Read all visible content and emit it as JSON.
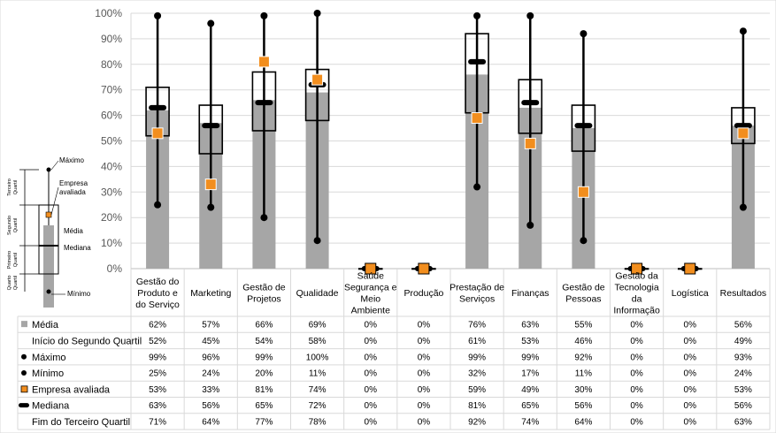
{
  "chart_data": {
    "type": "boxplot",
    "categories": [
      [
        "Gestão do",
        "Produto e",
        "do Serviço"
      ],
      [
        "Marketing"
      ],
      [
        "Gestão de",
        "Projetos"
      ],
      [
        "Qualidade"
      ],
      [
        "Saúde",
        "Segurança e",
        "Meio",
        "Ambiente"
      ],
      [
        "Produção"
      ],
      [
        "Prestação de",
        "Serviços"
      ],
      [
        "Finanças"
      ],
      [
        "Gestão de",
        "Pessoas"
      ],
      [
        "Gestão da",
        "Tecnologia",
        "da",
        "Informação"
      ],
      [
        "Logística"
      ],
      [
        "Resultados"
      ]
    ],
    "y_ticks": [
      "0%",
      "10%",
      "20%",
      "30%",
      "40%",
      "50%",
      "60%",
      "70%",
      "80%",
      "90%",
      "100%"
    ],
    "ylim": [
      0,
      100
    ],
    "series": [
      {
        "key": "media",
        "name": "Média",
        "values": [
          62,
          57,
          66,
          69,
          0,
          0,
          76,
          63,
          55,
          0,
          0,
          56
        ]
      },
      {
        "key": "q1",
        "name": "Início do Segundo Quartil",
        "values": [
          52,
          45,
          54,
          58,
          0,
          0,
          61,
          53,
          46,
          0,
          0,
          49
        ]
      },
      {
        "key": "max",
        "name": "Máximo",
        "values": [
          99,
          96,
          99,
          100,
          0,
          0,
          99,
          99,
          92,
          0,
          0,
          93
        ]
      },
      {
        "key": "min",
        "name": "Mínimo",
        "values": [
          25,
          24,
          20,
          11,
          0,
          0,
          32,
          17,
          11,
          0,
          0,
          24
        ]
      },
      {
        "key": "empresa",
        "name": "Empresa avaliada",
        "values": [
          53,
          33,
          81,
          74,
          0,
          0,
          59,
          49,
          30,
          0,
          0,
          53
        ]
      },
      {
        "key": "mediana",
        "name": "Mediana",
        "values": [
          63,
          56,
          65,
          72,
          0,
          0,
          81,
          65,
          56,
          0,
          0,
          56
        ]
      },
      {
        "key": "q3",
        "name": "Fim do Terceiro Quartil",
        "values": [
          71,
          64,
          77,
          78,
          0,
          0,
          92,
          74,
          64,
          0,
          0,
          63
        ]
      }
    ],
    "legend_key": {
      "maximo": "Máximo",
      "empresa": [
        "Empresa",
        "avaliada"
      ],
      "media": "Média",
      "mediana": "Mediana",
      "minimo": "Mínimo",
      "quartis": [
        "Terceiro",
        "Quartil",
        "Segundo",
        "Quartil",
        "Primeiro",
        "Quartil",
        "Quarto",
        "Quartil"
      ]
    },
    "colors": {
      "bar": "#a6a6a6",
      "marker": "#f28e1e",
      "line": "#000000",
      "grid": "#d9d9d9"
    }
  }
}
